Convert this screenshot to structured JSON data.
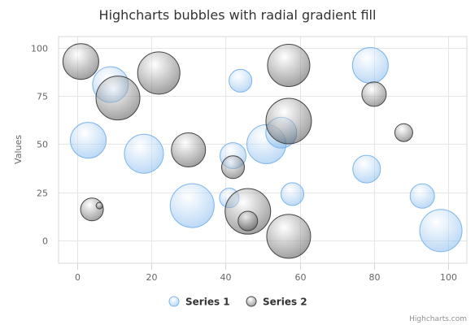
{
  "chart_data": {
    "type": "bubble",
    "title": "Highcharts bubbles with radial gradient fill",
    "xlabel": "",
    "ylabel": "Values",
    "xlim": [
      -5,
      105
    ],
    "ylim": [
      -12,
      106
    ],
    "xticks": [
      0,
      20,
      40,
      60,
      80,
      100
    ],
    "yticks": [
      0,
      25,
      50,
      75,
      100
    ],
    "grid": true,
    "legend": "bottom-center",
    "series": [
      {
        "name": "Series 1",
        "color": "#7cb5ec",
        "points": [
          {
            "x": 3,
            "y": 52,
            "z": 22
          },
          {
            "x": 9,
            "y": 81,
            "z": 22
          },
          {
            "x": 18,
            "y": 45,
            "z": 24
          },
          {
            "x": 31,
            "y": 18,
            "z": 27
          },
          {
            "x": 41,
            "y": 22,
            "z": 12
          },
          {
            "x": 42,
            "y": 44,
            "z": 16
          },
          {
            "x": 44,
            "y": 83,
            "z": 14
          },
          {
            "x": 51,
            "y": 50,
            "z": 24
          },
          {
            "x": 55,
            "y": 56,
            "z": 19
          },
          {
            "x": 58,
            "y": 24,
            "z": 14
          },
          {
            "x": 78,
            "y": 37,
            "z": 17
          },
          {
            "x": 79,
            "y": 91,
            "z": 22
          },
          {
            "x": 93,
            "y": 23,
            "z": 15
          },
          {
            "x": 98,
            "y": 5,
            "z": 26
          }
        ]
      },
      {
        "name": "Series 2",
        "color": "#444444",
        "points": [
          {
            "x": 1,
            "y": 93,
            "z": 22
          },
          {
            "x": 4,
            "y": 16,
            "z": 14
          },
          {
            "x": 6,
            "y": 18,
            "z": 4
          },
          {
            "x": 11,
            "y": 74,
            "z": 27
          },
          {
            "x": 22,
            "y": 87,
            "z": 26
          },
          {
            "x": 30,
            "y": 47,
            "z": 21
          },
          {
            "x": 42,
            "y": 38,
            "z": 14
          },
          {
            "x": 46,
            "y": 10,
            "z": 12
          },
          {
            "x": 46,
            "y": 15,
            "z": 28
          },
          {
            "x": 57,
            "y": 91,
            "z": 26
          },
          {
            "x": 57,
            "y": 2,
            "z": 27
          },
          {
            "x": 57,
            "y": 62,
            "z": 28
          },
          {
            "x": 80,
            "y": 76,
            "z": 15
          },
          {
            "x": 88,
            "y": 56,
            "z": 11
          }
        ]
      }
    ]
  },
  "credits": "Highcharts.com"
}
